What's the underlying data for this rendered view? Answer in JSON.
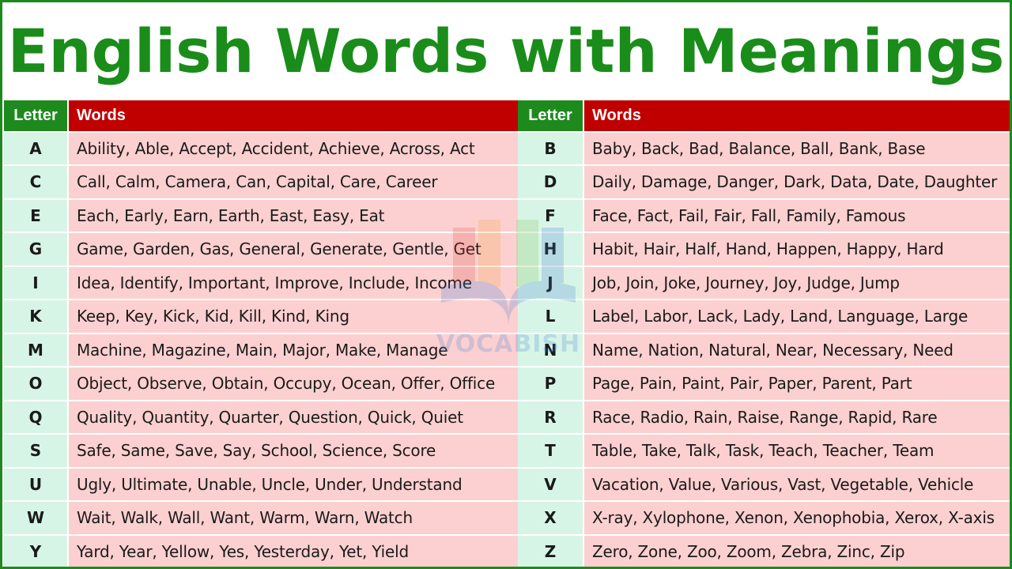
{
  "title": "English Words with Meanings",
  "headers": {
    "letter": "Letter",
    "words": "Words"
  },
  "watermark": {
    "text": "VOCABISH",
    "icon": "open-book-logo"
  },
  "colors": {
    "title": "#1a8c1a",
    "letter_header": "#1e8a1e",
    "words_header": "#c00000",
    "letter_cell": "#d7f5e6",
    "words_cell": "#fcd0d0",
    "border": "#1e8a1e"
  },
  "left_rows": [
    {
      "letter": "A",
      "words": "Ability, Able, Accept, Accident, Achieve, Across, Act"
    },
    {
      "letter": "C",
      "words": "Call, Calm, Camera, Can, Capital, Care, Career"
    },
    {
      "letter": "E",
      "words": "Each, Early, Earn, Earth, East, Easy, Eat"
    },
    {
      "letter": "G",
      "words": "Game, Garden, Gas, General, Generate, Gentle, Get"
    },
    {
      "letter": "I",
      "words": "Idea, Identify, Important, Improve, Include, Income"
    },
    {
      "letter": "K",
      "words": "Keep, Key, Kick, Kid, Kill, Kind, King"
    },
    {
      "letter": "M",
      "words": "Machine, Magazine, Main, Major, Make, Manage"
    },
    {
      "letter": "O",
      "words": "Object, Observe, Obtain, Occupy, Ocean, Offer, Office"
    },
    {
      "letter": "Q",
      "words": "Quality, Quantity, Quarter, Question, Quick, Quiet"
    },
    {
      "letter": "S",
      "words": "Safe, Same, Save, Say, School, Science, Score"
    },
    {
      "letter": "U",
      "words": "Ugly, Ultimate, Unable, Uncle, Under, Understand"
    },
    {
      "letter": "W",
      "words": "Wait, Walk, Wall, Want, Warm, Warn, Watch"
    },
    {
      "letter": "Y",
      "words": "Yard, Year, Yellow, Yes, Yesterday, Yet, Yield"
    }
  ],
  "right_rows": [
    {
      "letter": "B",
      "words": "Baby, Back, Bad, Balance, Ball, Bank, Base"
    },
    {
      "letter": "D",
      "words": "Daily, Damage, Danger, Dark, Data, Date, Daughter"
    },
    {
      "letter": "F",
      "words": "Face, Fact, Fail, Fair, Fall, Family, Famous"
    },
    {
      "letter": "H",
      "words": "Habit, Hair, Half, Hand, Happen, Happy, Hard"
    },
    {
      "letter": "J",
      "words": "Job, Join, Joke, Journey, Joy, Judge, Jump"
    },
    {
      "letter": "L",
      "words": "Label, Labor, Lack, Lady, Land, Language, Large"
    },
    {
      "letter": "N",
      "words": "Name, Nation, Natural, Near, Necessary, Need"
    },
    {
      "letter": "P",
      "words": "Page, Pain, Paint, Pair, Paper, Parent, Part"
    },
    {
      "letter": "R",
      "words": "Race, Radio, Rain, Raise, Range, Rapid, Rare"
    },
    {
      "letter": "T",
      "words": "Table, Take, Talk, Task, Teach, Teacher, Team"
    },
    {
      "letter": "V",
      "words": "Vacation, Value, Various, Vast, Vegetable, Vehicle"
    },
    {
      "letter": "X",
      "words": "X-ray, Xylophone, Xenon, Xenophobia, Xerox, X-axis"
    },
    {
      "letter": "Z",
      "words": "Zero, Zone, Zoo, Zoom, Zebra, Zinc, Zip"
    }
  ]
}
